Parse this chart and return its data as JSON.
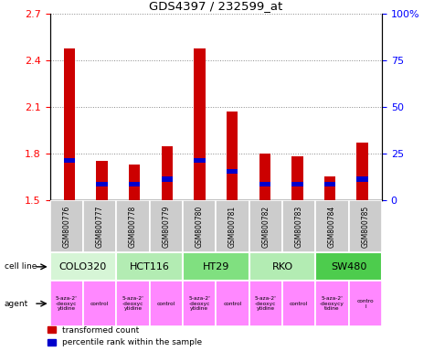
{
  "title": "GDS4397 / 232599_at",
  "samples": [
    "GSM800776",
    "GSM800777",
    "GSM800778",
    "GSM800779",
    "GSM800780",
    "GSM800781",
    "GSM800782",
    "GSM800783",
    "GSM800784",
    "GSM800785"
  ],
  "red_values": [
    2.48,
    1.75,
    1.73,
    1.85,
    2.48,
    2.07,
    1.8,
    1.78,
    1.65,
    1.87
  ],
  "blue_height": [
    0.03,
    0.03,
    0.03,
    0.03,
    0.03,
    0.03,
    0.03,
    0.03,
    0.03,
    0.03
  ],
  "blue_bottom": [
    1.74,
    1.59,
    1.59,
    1.62,
    1.74,
    1.67,
    1.59,
    1.59,
    1.59,
    1.62
  ],
  "ylim": [
    1.5,
    2.7
  ],
  "yticks_left": [
    1.5,
    1.8,
    2.1,
    2.4,
    2.7
  ],
  "yticks_right_vals": [
    0,
    25,
    50,
    75,
    100
  ],
  "yticks_right_labels": [
    "0",
    "25",
    "50",
    "75",
    "100%"
  ],
  "right_ylim": [
    0,
    100
  ],
  "cell_lines": [
    {
      "label": "COLO320",
      "start": 0,
      "end": 2,
      "color": "#d6f5d6"
    },
    {
      "label": "HCT116",
      "start": 2,
      "end": 4,
      "color": "#b3ecb3"
    },
    {
      "label": "HT29",
      "start": 4,
      "end": 6,
      "color": "#80e080"
    },
    {
      "label": "RKO",
      "start": 6,
      "end": 8,
      "color": "#b3ecb3"
    },
    {
      "label": "SW480",
      "start": 8,
      "end": 10,
      "color": "#4dcc4d"
    }
  ],
  "agent_labels": [
    "5-aza-2'\n-deoxyc\nytidine",
    "control",
    "5-aza-2'\n-deoxyc\nytidine",
    "control",
    "5-aza-2'\n-deoxyc\nytidine",
    "control",
    "5-aza-2'\n-deoxyc\nytidine",
    "control",
    "5-aza-2'\n-deoxycy\ntidine",
    "contro\nl"
  ],
  "bar_color_red": "#cc0000",
  "bar_color_blue": "#0000cc",
  "bar_width": 0.35,
  "base_value": 1.5,
  "grid_color": "#888888",
  "sample_bg_color": "#cccccc",
  "agent_color": "#ff88ff"
}
